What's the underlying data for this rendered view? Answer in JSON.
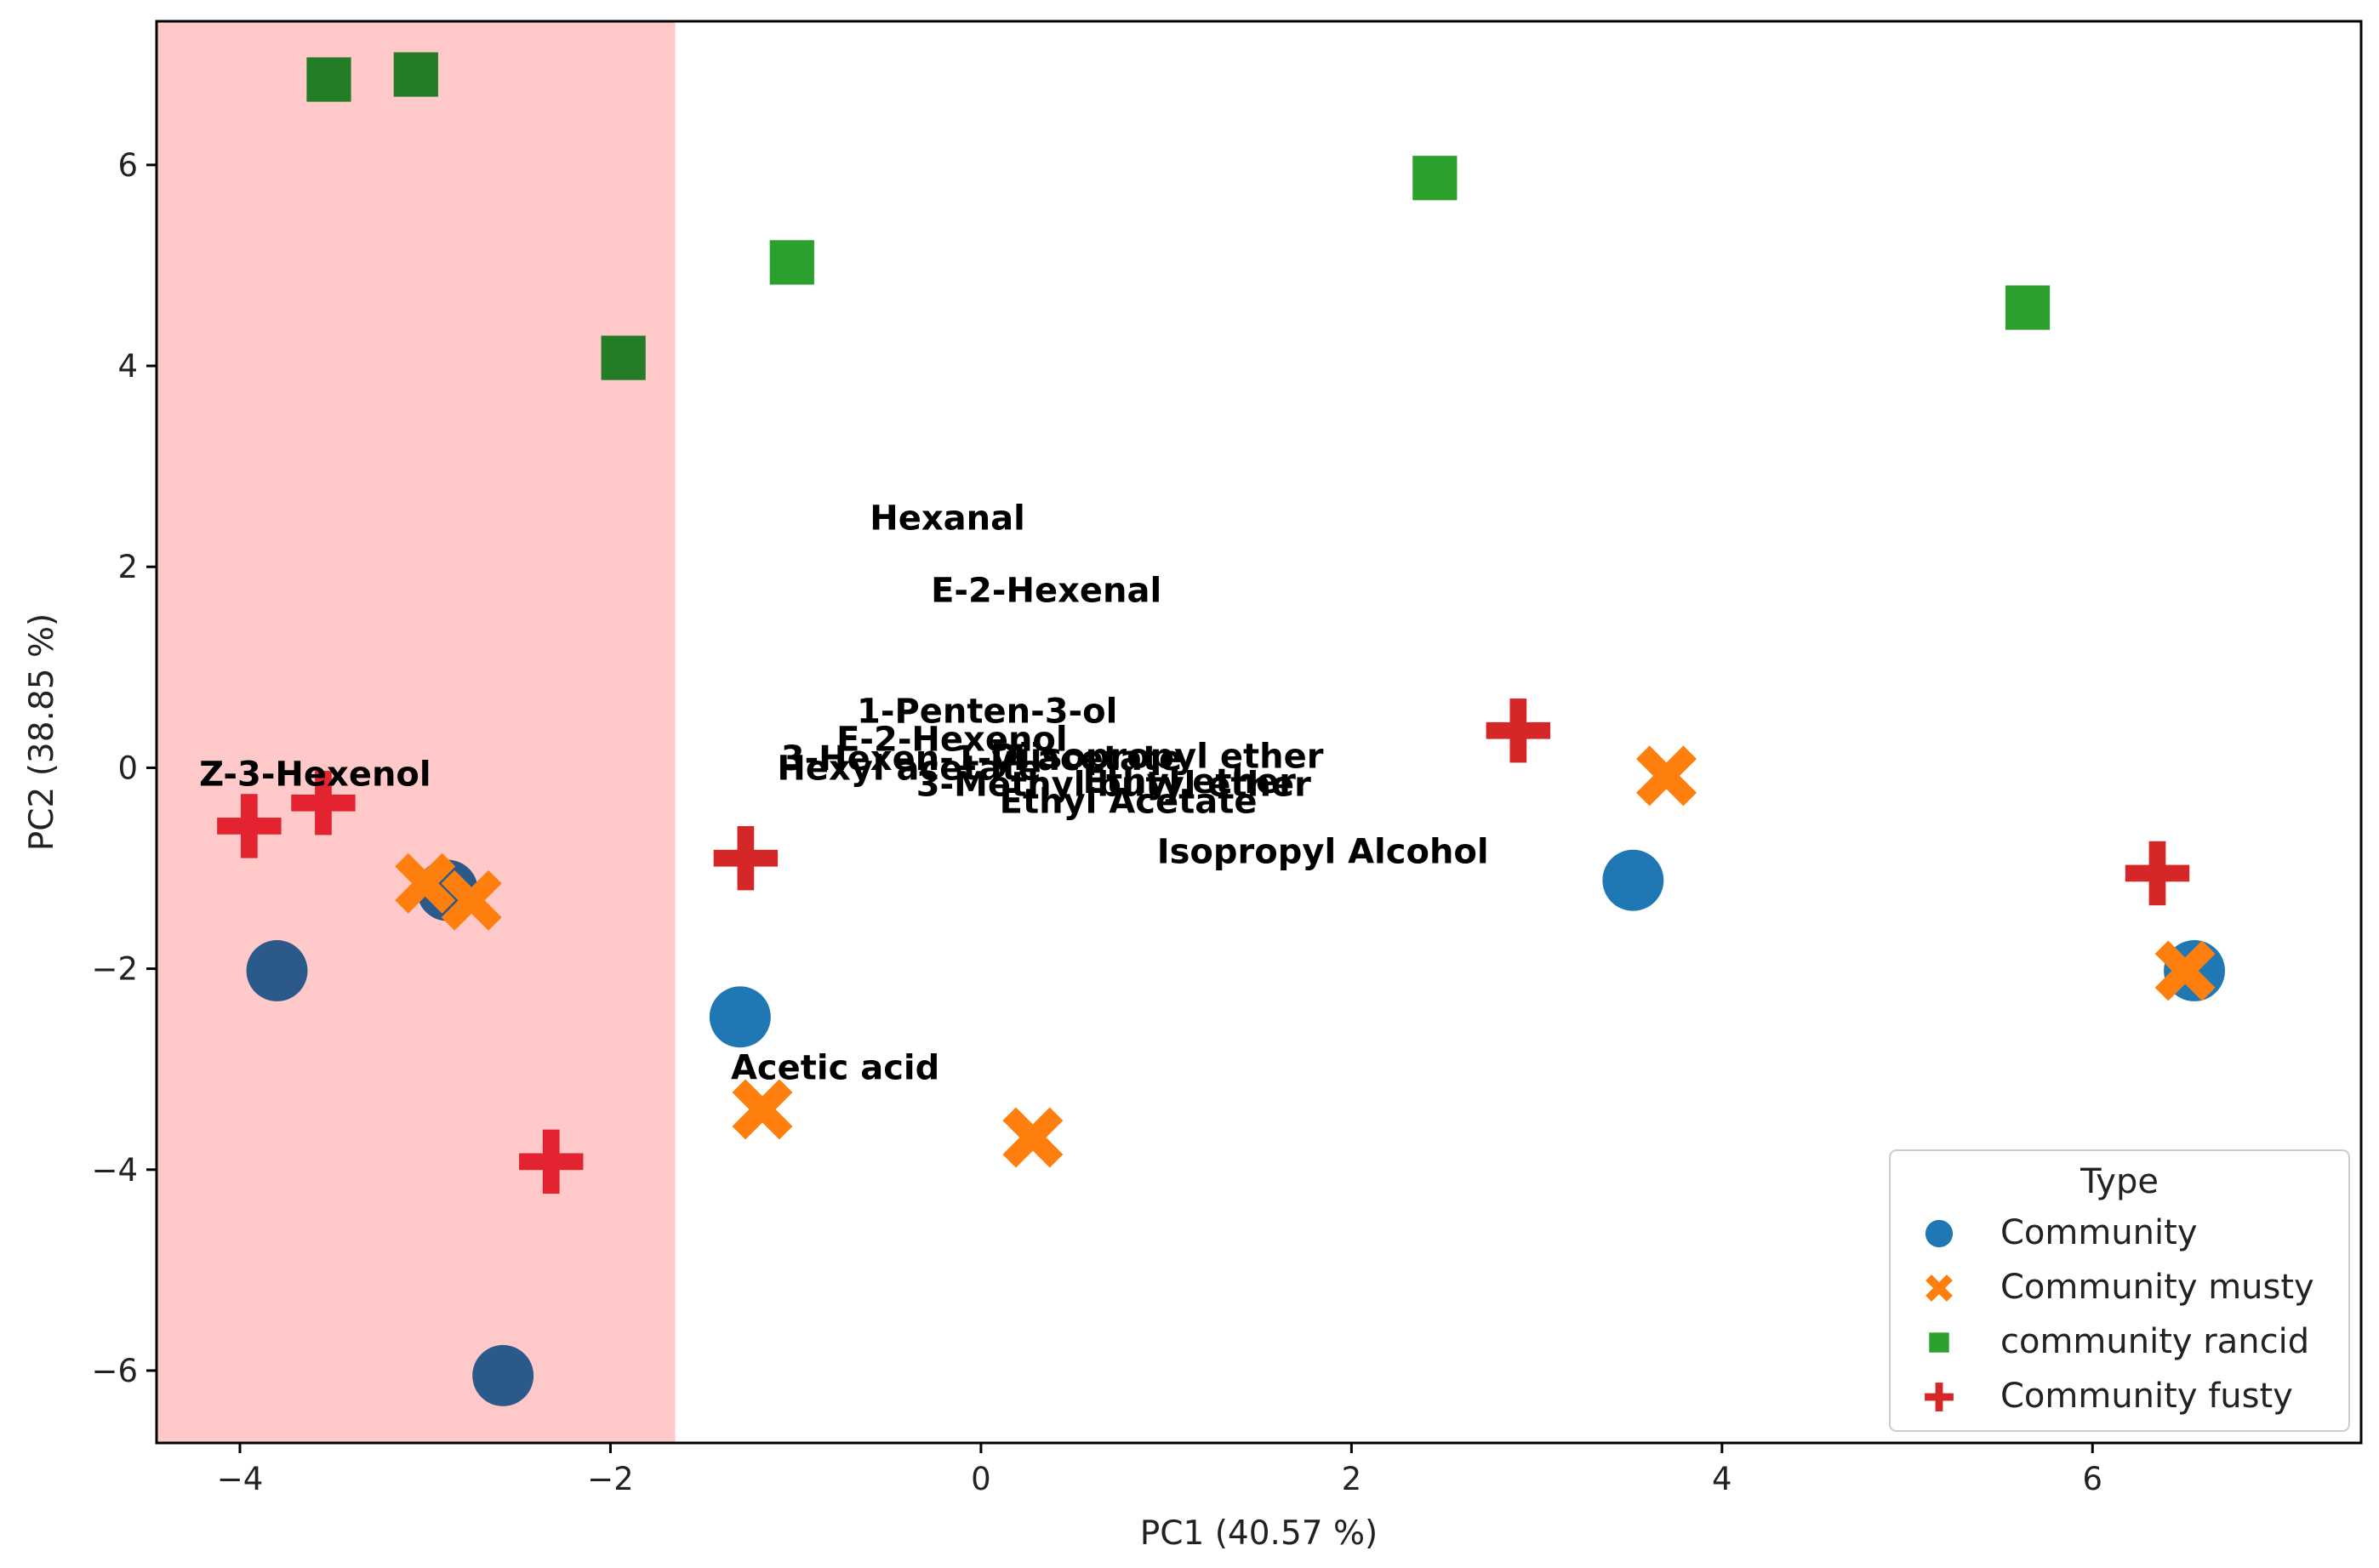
{
  "chart_data": {
    "type": "scatter",
    "xlabel": "PC1 (40.57 %)",
    "ylabel": "PC2 (38.85 %)",
    "xlim": [
      -4.45,
      7.45
    ],
    "ylim": [
      -6.72,
      7.43
    ],
    "xticks": [
      -4,
      -2,
      0,
      2,
      4,
      6
    ],
    "yticks": [
      -6,
      -4,
      -2,
      0,
      2,
      4,
      6
    ],
    "xtick_labels": [
      "−4",
      "−2",
      "0",
      "2",
      "4",
      "6"
    ],
    "ytick_labels": [
      "−6",
      "−4",
      "−2",
      "0",
      "2",
      "4",
      "6"
    ],
    "grid": false,
    "highlight_region": {
      "x_from": -4.45,
      "x_to": -1.65,
      "color": "#ffc9c9"
    },
    "legend": {
      "title": "Type",
      "placement": "lower-right"
    },
    "series": [
      {
        "name": "Community",
        "marker": "circle",
        "color": "#1f77b4",
        "points": [
          [
            -3.8,
            -2.02
          ],
          [
            -2.58,
            -6.05
          ],
          [
            -2.88,
            -1.22
          ],
          [
            -1.3,
            -2.48
          ],
          [
            3.52,
            -1.12
          ],
          [
            6.55,
            -2.02
          ]
        ]
      },
      {
        "name": "Community musty",
        "marker": "x",
        "color": "#ff7f0e",
        "points": [
          [
            -3.0,
            -1.15
          ],
          [
            -2.75,
            -1.32
          ],
          [
            -1.18,
            -3.4
          ],
          [
            0.28,
            -3.68
          ],
          [
            3.7,
            -0.08
          ],
          [
            6.5,
            -2.02
          ]
        ]
      },
      {
        "name": "community rancid",
        "marker": "square",
        "color": "#2ca02c",
        "points": [
          [
            -3.52,
            6.85
          ],
          [
            -3.05,
            6.9
          ],
          [
            -1.93,
            4.08
          ],
          [
            -1.02,
            5.03
          ],
          [
            2.45,
            5.87
          ],
          [
            5.65,
            4.58
          ]
        ]
      },
      {
        "name": "Community fusty",
        "marker": "plus",
        "color": "#d62728",
        "points": [
          [
            -3.95,
            -0.58
          ],
          [
            -3.55,
            -0.35
          ],
          [
            -2.32,
            -3.92
          ],
          [
            -1.27,
            -0.9
          ],
          [
            2.9,
            0.37
          ],
          [
            6.35,
            -1.05
          ]
        ]
      }
    ],
    "variable_labels": [
      {
        "text": "Hexanal",
        "x": -0.6,
        "y": 2.37
      },
      {
        "text": "E-2-Hexenal",
        "x": -0.27,
        "y": 1.65
      },
      {
        "text": "1-Penten-3-ol",
        "x": -0.67,
        "y": 0.45
      },
      {
        "text": "E-2-Hexenol",
        "x": -0.78,
        "y": 0.17
      },
      {
        "text": "Z-3-Hexenol",
        "x": -4.22,
        "y": -0.18
      },
      {
        "text": "Hexyl acetate",
        "x": -1.1,
        "y": -0.12
      },
      {
        "text": "3-Hexen-1-yl acetate",
        "x": -1.08,
        "y": -0.02
      },
      {
        "text": "Diisopropyl ether",
        "x": 0.05,
        "y": 0.0
      },
      {
        "text": "Ethyl ether",
        "x": 0.55,
        "y": -0.25
      },
      {
        "text": "3-Methyl butyl ether",
        "x": -0.35,
        "y": -0.28
      },
      {
        "text": "Ethyl Acetate",
        "x": 0.1,
        "y": -0.45
      },
      {
        "text": "Isopropyl Alcohol",
        "x": 0.95,
        "y": -0.95
      },
      {
        "text": "Acetic acid",
        "x": -1.35,
        "y": -3.1
      }
    ]
  }
}
